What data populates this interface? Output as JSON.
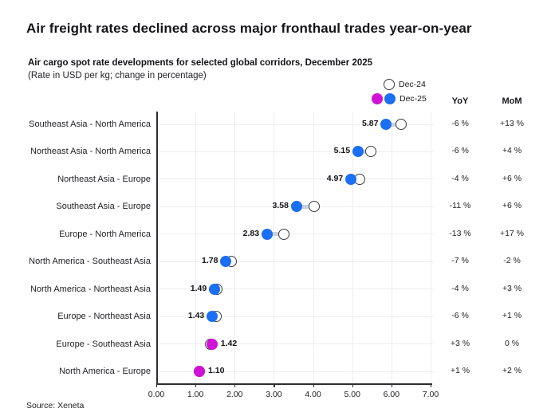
{
  "page": {
    "title": "Air freight rates declined across major fronthaul trades year-on-year",
    "source": "Source: Xeneta"
  },
  "colors": {
    "dec25_decline": "#1a6ff2",
    "dec25_increase": "#d111d6",
    "dec24_fill": "#ffffff",
    "dec24_border": "#3c3c40",
    "connector": "#ccd1d9",
    "gridline": "#ededef",
    "axis": "#2e2e32"
  },
  "chart_data": {
    "type": "dumbbell",
    "title": "Air cargo spot rate developments for selected global corridors, December 2025",
    "subtitle": "(Rate in USD per kg; change in percentage)",
    "legend": [
      {
        "label": "Dec-24",
        "marker": "open-circle"
      },
      {
        "label": "Dec-25",
        "marker": "magenta-and-blue-dots"
      }
    ],
    "columns": {
      "yoy": "YoY",
      "mom": "MoM"
    },
    "xlim": [
      0,
      7
    ],
    "x_ticks": [
      "0.00",
      "1.00",
      "2.00",
      "3.00",
      "4.00",
      "5.00",
      "6.00",
      "7.00"
    ],
    "grid": true,
    "rows": [
      {
        "corridor": "Southeast Asia - North America",
        "dec25": 5.87,
        "dec24_est": 6.24,
        "dec25_label": "5.87",
        "yoy": "-6 %",
        "mom": "+13 %",
        "trend": "decline",
        "label_side": "left"
      },
      {
        "corridor": "Northeast Asia - North America",
        "dec25": 5.15,
        "dec24_est": 5.48,
        "dec25_label": "5.15",
        "yoy": "-6 %",
        "mom": "+4 %",
        "trend": "decline",
        "label_side": "left"
      },
      {
        "corridor": "Northeast Asia - Europe",
        "dec25": 4.97,
        "dec24_est": 5.18,
        "dec25_label": "4.97",
        "yoy": "-4 %",
        "mom": "+6 %",
        "trend": "decline",
        "label_side": "left"
      },
      {
        "corridor": "Southeast Asia - Europe",
        "dec25": 3.58,
        "dec24_est": 4.02,
        "dec25_label": "3.58",
        "yoy": "-11 %",
        "mom": "+6 %",
        "trend": "decline",
        "label_side": "left"
      },
      {
        "corridor": "Europe - North America",
        "dec25": 2.83,
        "dec24_est": 3.25,
        "dec25_label": "2.83",
        "yoy": "-13 %",
        "mom": "+17 %",
        "trend": "decline",
        "label_side": "left"
      },
      {
        "corridor": "North America - Southeast Asia",
        "dec25": 1.78,
        "dec24_est": 1.91,
        "dec25_label": "1.78",
        "yoy": "-7 %",
        "mom": "-2 %",
        "trend": "decline",
        "label_side": "left"
      },
      {
        "corridor": "North America - Northeast Asia",
        "dec25": 1.49,
        "dec24_est": 1.55,
        "dec25_label": "1.49",
        "yoy": "-4 %",
        "mom": "+3 %",
        "trend": "decline",
        "label_side": "left"
      },
      {
        "corridor": "Europe - Northeast Asia",
        "dec25": 1.43,
        "dec24_est": 1.52,
        "dec25_label": "1.43",
        "yoy": "-6 %",
        "mom": "+1 %",
        "trend": "decline",
        "label_side": "left"
      },
      {
        "corridor": "Europe - Southeast Asia",
        "dec25": 1.42,
        "dec24_est": 1.38,
        "dec25_label": "1.42",
        "yoy": "+3 %",
        "mom": "0 %",
        "trend": "increase",
        "label_side": "right"
      },
      {
        "corridor": "North America - Europe",
        "dec25": 1.1,
        "dec24_est": 1.09,
        "dec25_label": "1.10",
        "yoy": "+1 %",
        "mom": "+2 %",
        "trend": "increase",
        "label_side": "right"
      }
    ]
  }
}
